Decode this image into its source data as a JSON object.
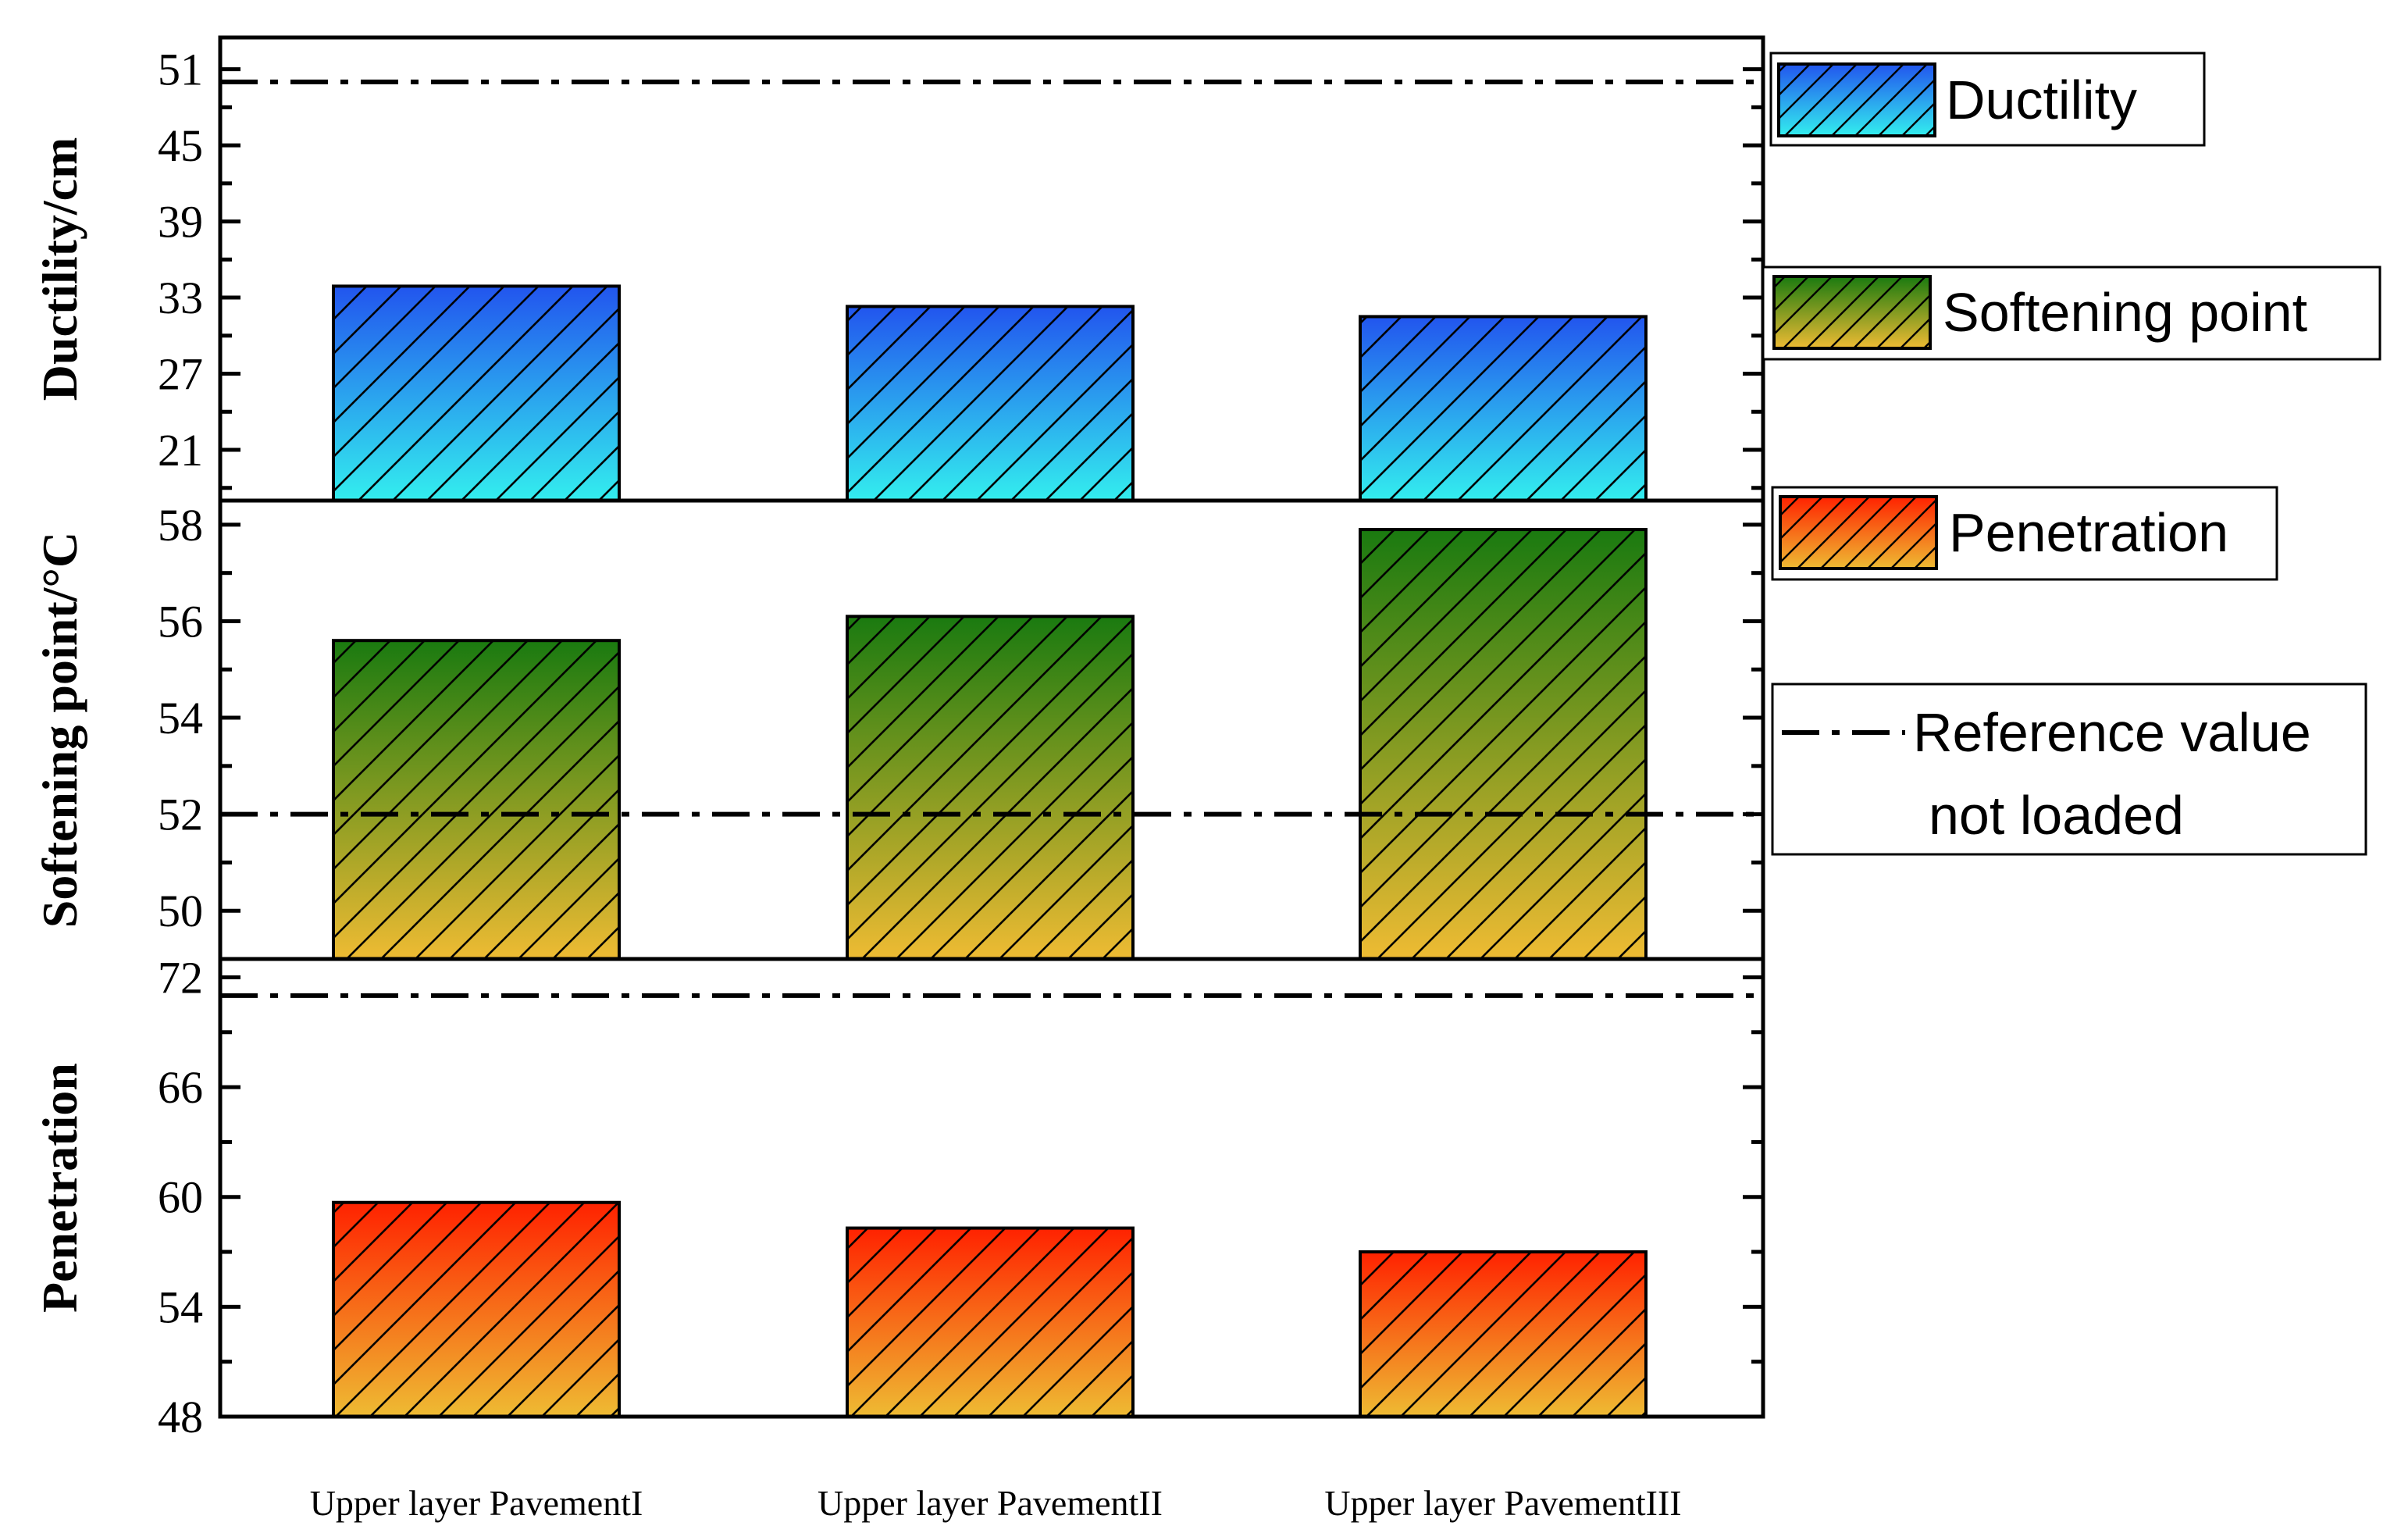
{
  "chart_data": {
    "type": "bar",
    "layout": "stacked-panels",
    "categories": [
      "Upper layer PavementI",
      "Upper layer PavementII",
      "Upper layer PavementIII"
    ],
    "panels": [
      {
        "id": "ductility",
        "ylabel": "Ductility/cm",
        "ylim": [
          17,
          53.5
        ],
        "ticks": [
          21,
          27,
          33,
          39,
          45,
          51
        ],
        "values": [
          33.9,
          32.3,
          31.5
        ],
        "reference": 50,
        "gradient": [
          "#2255ee",
          "#33eeee"
        ]
      },
      {
        "id": "softening",
        "ylabel": "Softening point/°C",
        "ylim": [
          49,
          58.5
        ],
        "ticks": [
          50,
          52,
          54,
          56,
          58
        ],
        "values": [
          55.6,
          56.1,
          57.9
        ],
        "reference": 52,
        "gradient": [
          "#1a7a10",
          "#eebb33"
        ]
      },
      {
        "id": "penetration",
        "ylabel": "Penetration",
        "ylim": [
          48,
          73
        ],
        "ticks": [
          48,
          54,
          60,
          66,
          72
        ],
        "values": [
          59.7,
          58.3,
          57.0
        ],
        "reference": 71,
        "gradient": [
          "#ff2200",
          "#eebb33"
        ]
      }
    ],
    "legend": [
      {
        "label": "Ductility",
        "kind": "bar",
        "gradient": [
          "#2255ee",
          "#33eeee"
        ]
      },
      {
        "label": "Softening point",
        "kind": "bar",
        "gradient": [
          "#1a7a10",
          "#eebb33"
        ]
      },
      {
        "label": "Penetration",
        "kind": "bar",
        "gradient": [
          "#ff2200",
          "#eebb33"
        ]
      },
      {
        "label_lines": [
          "Reference value",
          "not loaded"
        ],
        "kind": "line"
      }
    ]
  }
}
